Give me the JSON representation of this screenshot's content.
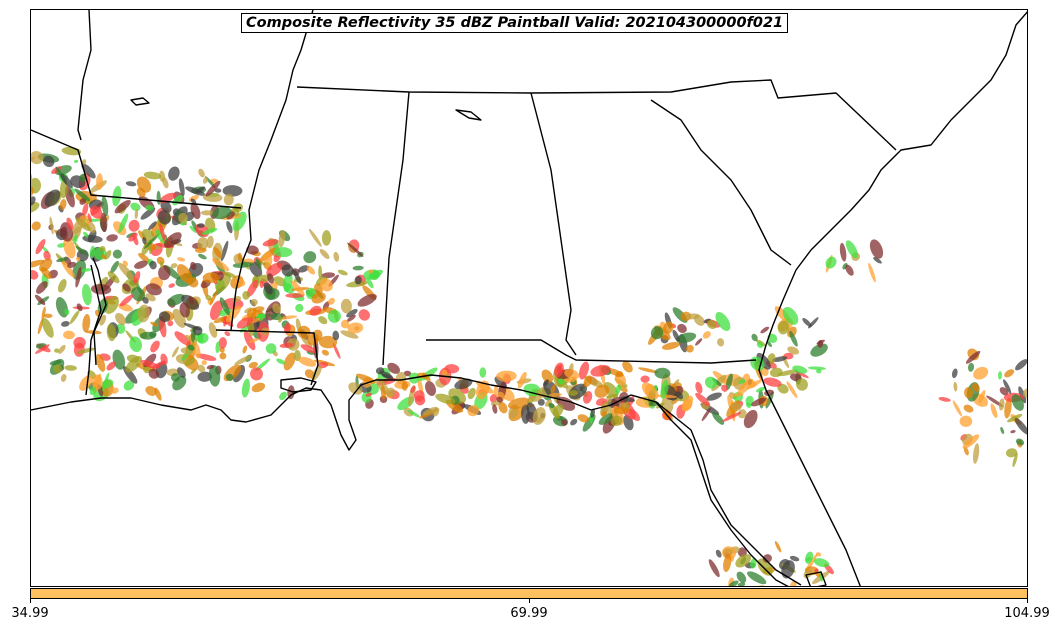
{
  "title": "Composite Reflectivity 35 dBZ Paintball Valid: 202104300000f021",
  "colorbar": {
    "color": "#ffc060",
    "ticks": [
      "34.99",
      "69.99",
      "104.99"
    ]
  },
  "map": {
    "region": "Southeastern United States",
    "member_colors": [
      "#ff4040",
      "#ffa030",
      "#a0a020",
      "#308030",
      "#40e040",
      "#803030",
      "#404040",
      "#e08000",
      "#c0a040"
    ]
  }
}
